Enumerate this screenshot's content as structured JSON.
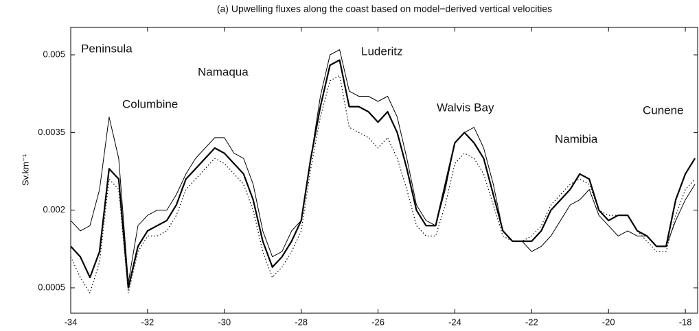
{
  "chart_data": {
    "type": "line",
    "title": "(a) Upwelling fluxes along the coast based on model−derived vertical velocities",
    "ylabel": "Sv.km⁻¹",
    "annotations": [
      "Peninsula",
      "Columbine",
      "Namaqua",
      "Luderitz",
      "Walvis Bay",
      "Namibia",
      "Cunene"
    ],
    "x": [
      -34,
      -33.75,
      -33.5,
      -33.25,
      -33,
      -32.75,
      -32.5,
      -32.25,
      -32,
      -31.75,
      -31.5,
      -31.25,
      -31,
      -30.75,
      -30.5,
      -30.25,
      -30,
      -29.75,
      -29.5,
      -29.25,
      -29,
      -28.75,
      -28.5,
      -28.25,
      -28,
      -27.75,
      -27.5,
      -27.25,
      -27,
      -26.75,
      -26.5,
      -26.25,
      -26,
      -25.75,
      -25.5,
      -25.25,
      -25,
      -24.75,
      -24.5,
      -24.25,
      -24,
      -23.75,
      -23.5,
      -23.25,
      -23,
      -22.75,
      -22.5,
      -22.25,
      -22,
      -21.75,
      -21.5,
      -21.25,
      -21,
      -20.75,
      -20.5,
      -20.25,
      -20,
      -19.75,
      -19.5,
      -19.25,
      -19,
      -18.75,
      -18.5,
      -18.25,
      -18,
      -17.75
    ],
    "series": [
      {
        "color": "#000000",
        "line_style": "thin",
        "values": [
          0.0018,
          0.0016,
          0.0017,
          0.0024,
          0.0038,
          0.003,
          0.0006,
          0.0017,
          0.0019,
          0.002,
          0.002,
          0.0023,
          0.0027,
          0.003,
          0.0032,
          0.0034,
          0.0034,
          0.0031,
          0.003,
          0.0025,
          0.0016,
          0.0011,
          0.0012,
          0.0016,
          0.0018,
          0.003,
          0.0042,
          0.005,
          0.0051,
          0.0043,
          0.0042,
          0.0042,
          0.0041,
          0.0042,
          0.0038,
          0.003,
          0.0021,
          0.0018,
          0.0017,
          0.0024,
          0.0033,
          0.0035,
          0.0036,
          0.0032,
          0.0025,
          0.0016,
          0.0014,
          0.0014,
          0.0012,
          0.0013,
          0.0015,
          0.0018,
          0.0021,
          0.0022,
          0.0024,
          0.0019,
          0.0017,
          0.0015,
          0.0016,
          0.0015,
          0.0015,
          0.0013,
          0.0013,
          0.0018,
          0.0022,
          0.0025
        ]
      },
      {
        "color": "#000000",
        "line_style": "thick",
        "values": [
          0.0013,
          0.0011,
          0.0007,
          0.0012,
          0.0028,
          0.0026,
          0.0005,
          0.0013,
          0.0016,
          0.0017,
          0.0018,
          0.0021,
          0.0026,
          0.0028,
          0.003,
          0.0032,
          0.0031,
          0.0029,
          0.0027,
          0.0022,
          0.0014,
          0.0009,
          0.0011,
          0.0014,
          0.0018,
          0.003,
          0.004,
          0.0048,
          0.0049,
          0.004,
          0.004,
          0.0039,
          0.0037,
          0.0039,
          0.0035,
          0.0028,
          0.002,
          0.0017,
          0.0017,
          0.0025,
          0.0033,
          0.0035,
          0.0033,
          0.003,
          0.0023,
          0.0016,
          0.0014,
          0.0014,
          0.0014,
          0.0016,
          0.002,
          0.0022,
          0.0024,
          0.0027,
          0.0026,
          0.002,
          0.0018,
          0.0019,
          0.0019,
          0.0016,
          0.0015,
          0.0013,
          0.0013,
          0.0022,
          0.0027,
          0.003
        ]
      },
      {
        "color": "#000000",
        "line_style": "dotted",
        "values": [
          0.0011,
          0.0007,
          0.0004,
          0.001,
          0.0026,
          0.0024,
          0.0004,
          0.0012,
          0.0015,
          0.0015,
          0.0016,
          0.0019,
          0.0024,
          0.0026,
          0.0028,
          0.003,
          0.0029,
          0.0027,
          0.0025,
          0.002,
          0.0012,
          0.0007,
          0.0009,
          0.0012,
          0.0016,
          0.0028,
          0.0038,
          0.0045,
          0.0046,
          0.0036,
          0.0035,
          0.0034,
          0.0032,
          0.0034,
          0.003,
          0.0024,
          0.0017,
          0.0015,
          0.0015,
          0.0021,
          0.0029,
          0.0031,
          0.003,
          0.0027,
          0.0021,
          0.0015,
          0.0014,
          0.0014,
          0.0015,
          0.0017,
          0.0021,
          0.0023,
          0.0025,
          0.0026,
          0.0025,
          0.002,
          0.0019,
          0.0019,
          0.0019,
          0.0016,
          0.0014,
          0.0012,
          0.0012,
          0.0019,
          0.0024,
          0.0026
        ]
      }
    ],
    "xlim": [
      -34,
      -17.68
    ],
    "xticks": [
      -34,
      -32,
      -30,
      -28,
      -26,
      -24,
      -22,
      -20,
      -18
    ],
    "ylim": [
      1e-05,
      0.00553
    ],
    "yticks": [
      0.0005,
      0.002,
      0.0035,
      0.005
    ],
    "grid": false
  }
}
